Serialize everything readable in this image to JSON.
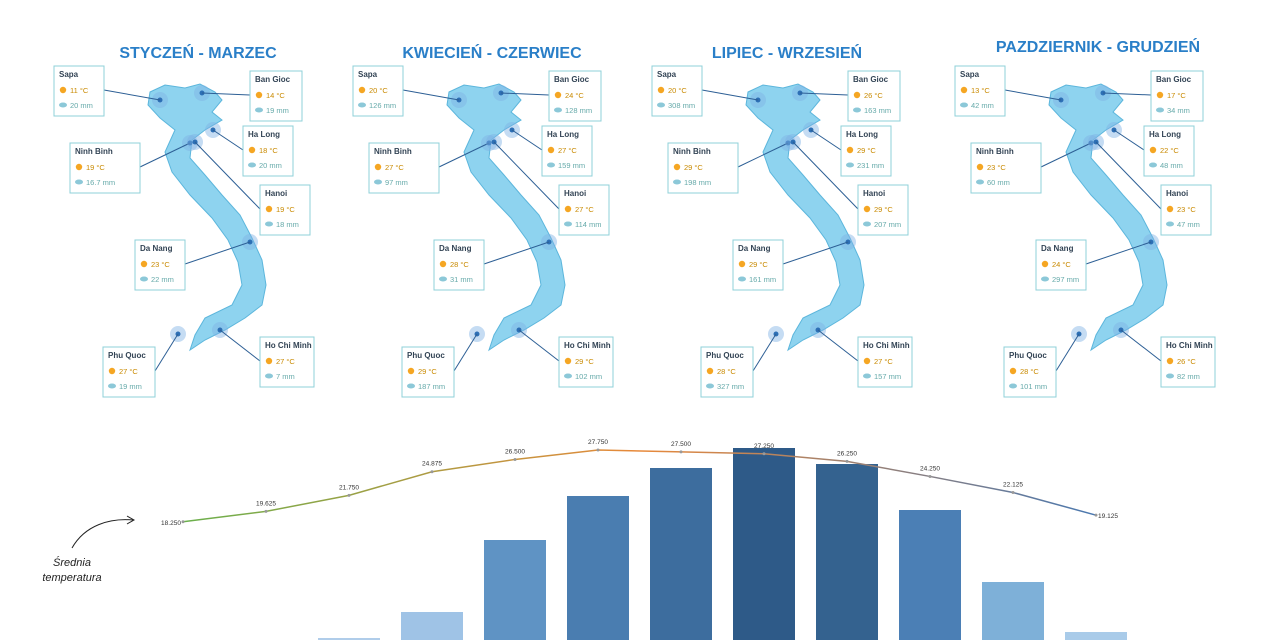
{
  "seasons": [
    {
      "title": "STYCZEŃ - MARZEC",
      "cities": [
        {
          "name": "Sapa",
          "temp": "11 °C",
          "rain": "20 mm"
        },
        {
          "name": "Ban Gioc",
          "temp": "14 °C",
          "rain": "19 mm"
        },
        {
          "name": "Ha Long",
          "temp": "18 °C",
          "rain": "20 mm"
        },
        {
          "name": "Ninh Binh",
          "temp": "19 °C",
          "rain": "16.7 mm"
        },
        {
          "name": "Hanoi",
          "temp": "19 °C",
          "rain": "18 mm"
        },
        {
          "name": "Da Nang",
          "temp": "23 °C",
          "rain": "22 mm"
        },
        {
          "name": "Phu Quoc",
          "temp": "27 °C",
          "rain": "19 mm"
        },
        {
          "name": "Ho Chi Minh",
          "temp": "27 °C",
          "rain": "7 mm"
        }
      ]
    },
    {
      "title": "KWIECIEŃ - CZERWIEC",
      "cities": [
        {
          "name": "Sapa",
          "temp": "20 °C",
          "rain": "126 mm"
        },
        {
          "name": "Ban Gioc",
          "temp": "24 °C",
          "rain": "128 mm"
        },
        {
          "name": "Ha Long",
          "temp": "27 °C",
          "rain": "159 mm"
        },
        {
          "name": "Ninh Binh",
          "temp": "27 °C",
          "rain": "97 mm"
        },
        {
          "name": "Hanoi",
          "temp": "27 °C",
          "rain": "114 mm"
        },
        {
          "name": "Da Nang",
          "temp": "28 °C",
          "rain": "31 mm"
        },
        {
          "name": "Phu Quoc",
          "temp": "29 °C",
          "rain": "187 mm"
        },
        {
          "name": "Ho Chi Minh",
          "temp": "29 °C",
          "rain": "102 mm"
        }
      ]
    },
    {
      "title": "LIPIEC - WRZESIEŃ",
      "cities": [
        {
          "name": "Sapa",
          "temp": "20 °C",
          "rain": "308 mm"
        },
        {
          "name": "Ban Gioc",
          "temp": "26 °C",
          "rain": "163 mm"
        },
        {
          "name": "Ha Long",
          "temp": "29 °C",
          "rain": "231 mm"
        },
        {
          "name": "Ninh Binh",
          "temp": "29 °C",
          "rain": "198 mm"
        },
        {
          "name": "Hanoi",
          "temp": "29 °C",
          "rain": "207 mm"
        },
        {
          "name": "Da Nang",
          "temp": "29 °C",
          "rain": "161 mm"
        },
        {
          "name": "Phu Quoc",
          "temp": "28 °C",
          "rain": "327 mm"
        },
        {
          "name": "Ho Chi Minh",
          "temp": "27 °C",
          "rain": "157 mm"
        }
      ]
    },
    {
      "title": "PAZDZIERNIK - GRUDZIEŃ",
      "cities": [
        {
          "name": "Sapa",
          "temp": "13 °C",
          "rain": "42 mm"
        },
        {
          "name": "Ban Gioc",
          "temp": "17 °C",
          "rain": "34 mm"
        },
        {
          "name": "Ha Long",
          "temp": "22 °C",
          "rain": "48 mm"
        },
        {
          "name": "Ninh Binh",
          "temp": "23 °C",
          "rain": "60 mm"
        },
        {
          "name": "Hanoi",
          "temp": "23 °C",
          "rain": "47 mm"
        },
        {
          "name": "Da Nang",
          "temp": "24 °C",
          "rain": "297 mm"
        },
        {
          "name": "Phu Quoc",
          "temp": "28 °C",
          "rain": "101 mm"
        },
        {
          "name": "Ho Chi Minh",
          "temp": "26 °C",
          "rain": "82 mm"
        }
      ]
    }
  ],
  "chart_data": {
    "type": "bar-line",
    "annotation": [
      "Średnia",
      "temperatura"
    ],
    "ylim": [
      0,
      100
    ],
    "y2lim": [
      12,
      30
    ],
    "series": [
      {
        "type": "bar",
        "values": [
          0,
          0,
          1,
          14,
          50,
          72,
          86,
          96,
          88,
          65,
          29,
          4
        ],
        "colors": [
          "#b9d4ee",
          "#b9d4ee",
          "#b0cdea",
          "#9fc3e6",
          "#5f93c4",
          "#4a7db0",
          "#3d6d9e",
          "#2e5a88",
          "#34628f",
          "#4b7fb5",
          "#7eb0d8",
          "#a9cbe9"
        ]
      },
      {
        "type": "line",
        "axis": "y2",
        "values": [
          18.25,
          19.625,
          21.75,
          24.875,
          26.5,
          27.75,
          27.5,
          27.25,
          26.25,
          24.25,
          22.125,
          19.125
        ],
        "value_labels": [
          "18.250",
          "19.625",
          "21.750",
          "24.875",
          "26.500",
          "27.750",
          "27.500",
          "27.250",
          "26.250",
          "24.250",
          "22.125",
          "19.125"
        ],
        "colors": [
          "#6ab04c",
          "#e8893a",
          "#4a78b0"
        ]
      }
    ]
  }
}
